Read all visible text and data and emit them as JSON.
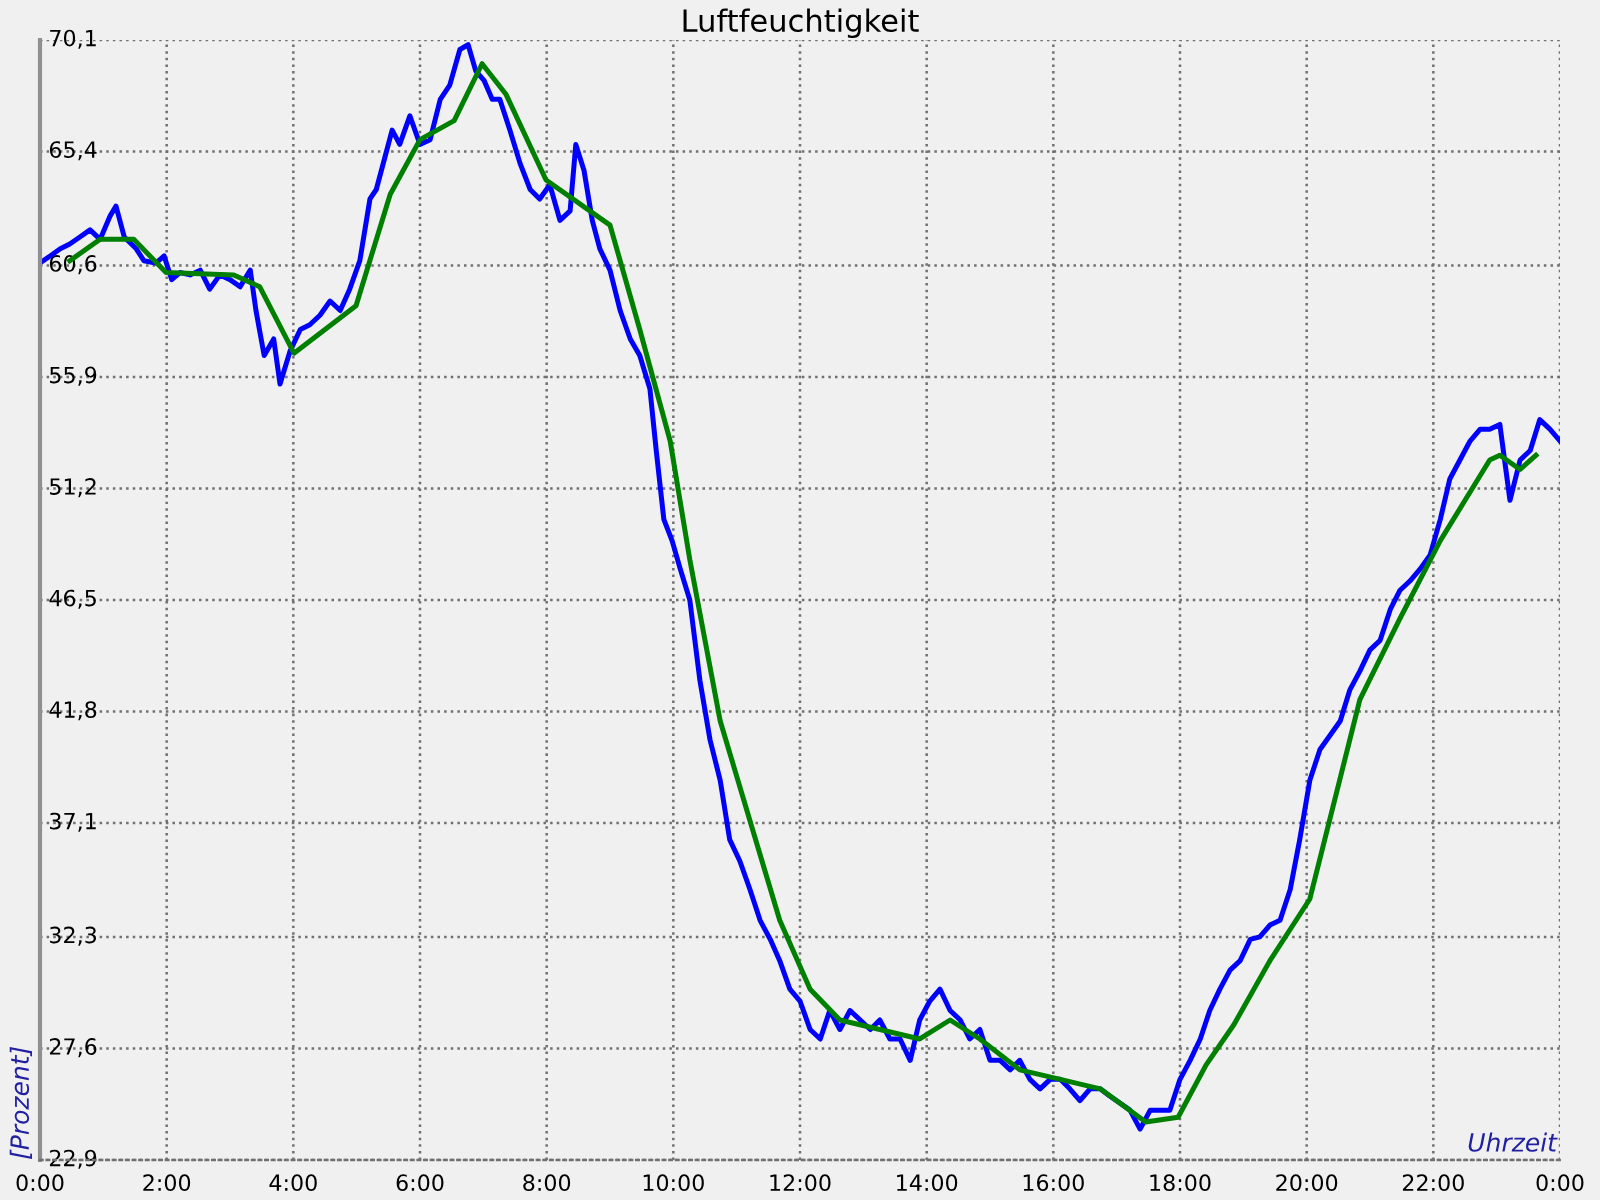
{
  "chart_data": {
    "type": "line",
    "title": "Luftfeuchtigkeit",
    "xlabel": "Uhrzeit",
    "ylabel": "[Prozent]",
    "xlim": [
      0,
      24
    ],
    "xticks": [
      {
        "value": 0,
        "label": "0:00"
      },
      {
        "value": 2,
        "label": "2:00"
      },
      {
        "value": 4,
        "label": "4:00"
      },
      {
        "value": 6,
        "label": "6:00"
      },
      {
        "value": 8,
        "label": "8:00"
      },
      {
        "value": 10,
        "label": "10:00"
      },
      {
        "value": 12,
        "label": "12:00"
      },
      {
        "value": 14,
        "label": "14:00"
      },
      {
        "value": 16,
        "label": "16:00"
      },
      {
        "value": 18,
        "label": "18:00"
      },
      {
        "value": 20,
        "label": "20:00"
      },
      {
        "value": 22,
        "label": "22:00"
      },
      {
        "value": 24,
        "label": "0:00"
      }
    ],
    "ylim": [
      22.9,
      70.1
    ],
    "yticks": [
      {
        "value": 22.9,
        "label": "22,9"
      },
      {
        "value": 27.6,
        "label": "27,6"
      },
      {
        "value": 32.3,
        "label": "32,3"
      },
      {
        "value": 37.1,
        "label": "37,1"
      },
      {
        "value": 41.8,
        "label": "41,8"
      },
      {
        "value": 46.5,
        "label": "46,5"
      },
      {
        "value": 51.2,
        "label": "51,2"
      },
      {
        "value": 55.9,
        "label": "55,9"
      },
      {
        "value": 60.6,
        "label": "60,6"
      },
      {
        "value": 65.4,
        "label": "65,4"
      },
      {
        "value": 70.1,
        "label": "70,1"
      }
    ],
    "grid": true,
    "marker": "none",
    "line_style": "solid",
    "series": [
      {
        "color": "#0000ff",
        "x": [
          0.0,
          0.16,
          0.32,
          0.47,
          0.63,
          0.79,
          0.95,
          1.11,
          1.2,
          1.33,
          1.52,
          1.64,
          1.83,
          1.96,
          2.08,
          2.21,
          2.37,
          2.53,
          2.68,
          2.84,
          3.0,
          3.16,
          3.32,
          3.41,
          3.54,
          3.69,
          3.79,
          3.95,
          4.11,
          4.26,
          4.42,
          4.58,
          4.74,
          4.89,
          5.05,
          5.21,
          5.31,
          5.43,
          5.56,
          5.68,
          5.84,
          6.0,
          6.16,
          6.32,
          6.47,
          6.63,
          6.76,
          6.88,
          7.01,
          7.14,
          7.26,
          7.42,
          7.58,
          7.74,
          7.89,
          8.05,
          8.21,
          8.37,
          8.46,
          8.59,
          8.72,
          8.84,
          9.0,
          9.16,
          9.32,
          9.47,
          9.63,
          9.73,
          9.85,
          9.98,
          10.11,
          10.26,
          10.42,
          10.58,
          10.74,
          10.89,
          11.05,
          11.21,
          11.37,
          11.53,
          11.68,
          11.84,
          12.0,
          12.16,
          12.32,
          12.47,
          12.63,
          12.79,
          12.95,
          13.11,
          13.26,
          13.42,
          13.58,
          13.74,
          13.89,
          14.05,
          14.21,
          14.37,
          14.53,
          14.68,
          14.84,
          15.0,
          15.16,
          15.32,
          15.47,
          15.63,
          15.79,
          15.95,
          16.11,
          16.26,
          16.42,
          16.58,
          16.74,
          16.89,
          17.05,
          17.21,
          17.37,
          17.53,
          17.68,
          17.84,
          18.0,
          18.16,
          18.32,
          18.47,
          18.63,
          18.79,
          18.95,
          19.11,
          19.26,
          19.42,
          19.58,
          19.74,
          19.89,
          20.05,
          20.21,
          20.37,
          20.53,
          20.68,
          20.84,
          21.0,
          21.16,
          21.32,
          21.47,
          21.63,
          21.79,
          21.95,
          22.11,
          22.26,
          22.42,
          22.58,
          22.74,
          22.89,
          23.05,
          23.21,
          23.37,
          23.53,
          23.68,
          23.84,
          24.0
        ],
        "values": [
          60.7,
          61.0,
          61.3,
          61.5,
          61.8,
          62.1,
          61.7,
          62.7,
          63.1,
          61.8,
          61.3,
          60.8,
          60.7,
          61.0,
          60.0,
          60.3,
          60.2,
          60.4,
          59.6,
          60.2,
          60.0,
          59.7,
          60.4,
          58.7,
          56.8,
          57.5,
          55.6,
          57.0,
          57.9,
          58.1,
          58.5,
          59.1,
          58.7,
          59.6,
          60.8,
          63.4,
          63.8,
          65.0,
          66.3,
          65.7,
          66.9,
          65.7,
          65.9,
          67.6,
          68.2,
          69.7,
          69.9,
          68.8,
          68.4,
          67.6,
          67.6,
          66.3,
          64.9,
          63.8,
          63.4,
          64.0,
          62.5,
          62.9,
          65.7,
          64.6,
          62.5,
          61.3,
          60.4,
          58.7,
          57.5,
          56.8,
          55.4,
          52.8,
          49.9,
          49.0,
          47.8,
          46.5,
          43.1,
          40.6,
          38.9,
          36.4,
          35.5,
          34.3,
          33.0,
          32.2,
          31.3,
          30.1,
          29.6,
          28.4,
          28.0,
          29.2,
          28.4,
          29.2,
          28.8,
          28.4,
          28.8,
          28.0,
          28.0,
          27.1,
          28.8,
          29.6,
          30.1,
          29.2,
          28.8,
          28.0,
          28.4,
          27.1,
          27.1,
          26.7,
          27.1,
          26.3,
          25.9,
          26.3,
          26.3,
          25.9,
          25.4,
          25.9,
          25.9,
          25.6,
          25.3,
          25.0,
          24.2,
          25.0,
          25.0,
          25.0,
          26.3,
          27.1,
          28.0,
          29.2,
          30.1,
          30.9,
          31.3,
          32.2,
          32.3,
          32.8,
          33.0,
          34.3,
          36.4,
          38.9,
          40.2,
          40.8,
          41.4,
          42.7,
          43.5,
          44.4,
          44.8,
          46.1,
          46.9,
          47.3,
          47.8,
          48.4,
          49.9,
          51.6,
          52.4,
          53.2,
          53.7,
          53.7,
          53.9,
          50.7,
          52.4,
          52.8,
          54.1,
          53.7,
          53.2
        ]
      },
      {
        "color": "#008000",
        "x": [
          0.47,
          0.95,
          1.48,
          1.99,
          3.06,
          3.47,
          4.01,
          4.99,
          5.53,
          6.0,
          6.54,
          6.98,
          7.36,
          7.99,
          9.0,
          9.47,
          9.95,
          10.26,
          10.74,
          11.21,
          11.68,
          12.16,
          12.63,
          13.26,
          13.89,
          14.37,
          14.84,
          15.47,
          16.11,
          16.74,
          17.46,
          17.97,
          18.41,
          18.85,
          19.42,
          20.05,
          20.84,
          21.47,
          22.11,
          22.89,
          23.05,
          23.37,
          23.62
        ],
        "values": [
          60.8,
          61.7,
          61.7,
          60.3,
          60.2,
          59.7,
          56.9,
          58.9,
          63.6,
          65.9,
          66.7,
          69.1,
          67.8,
          64.2,
          62.3,
          57.9,
          53.2,
          48.2,
          41.4,
          37.2,
          33.0,
          30.1,
          28.8,
          28.4,
          28.0,
          28.8,
          28.0,
          26.7,
          26.3,
          25.9,
          24.5,
          24.7,
          26.9,
          28.6,
          31.3,
          33.9,
          42.3,
          45.7,
          49.0,
          52.4,
          52.6,
          52.0,
          52.6
        ]
      }
    ]
  }
}
